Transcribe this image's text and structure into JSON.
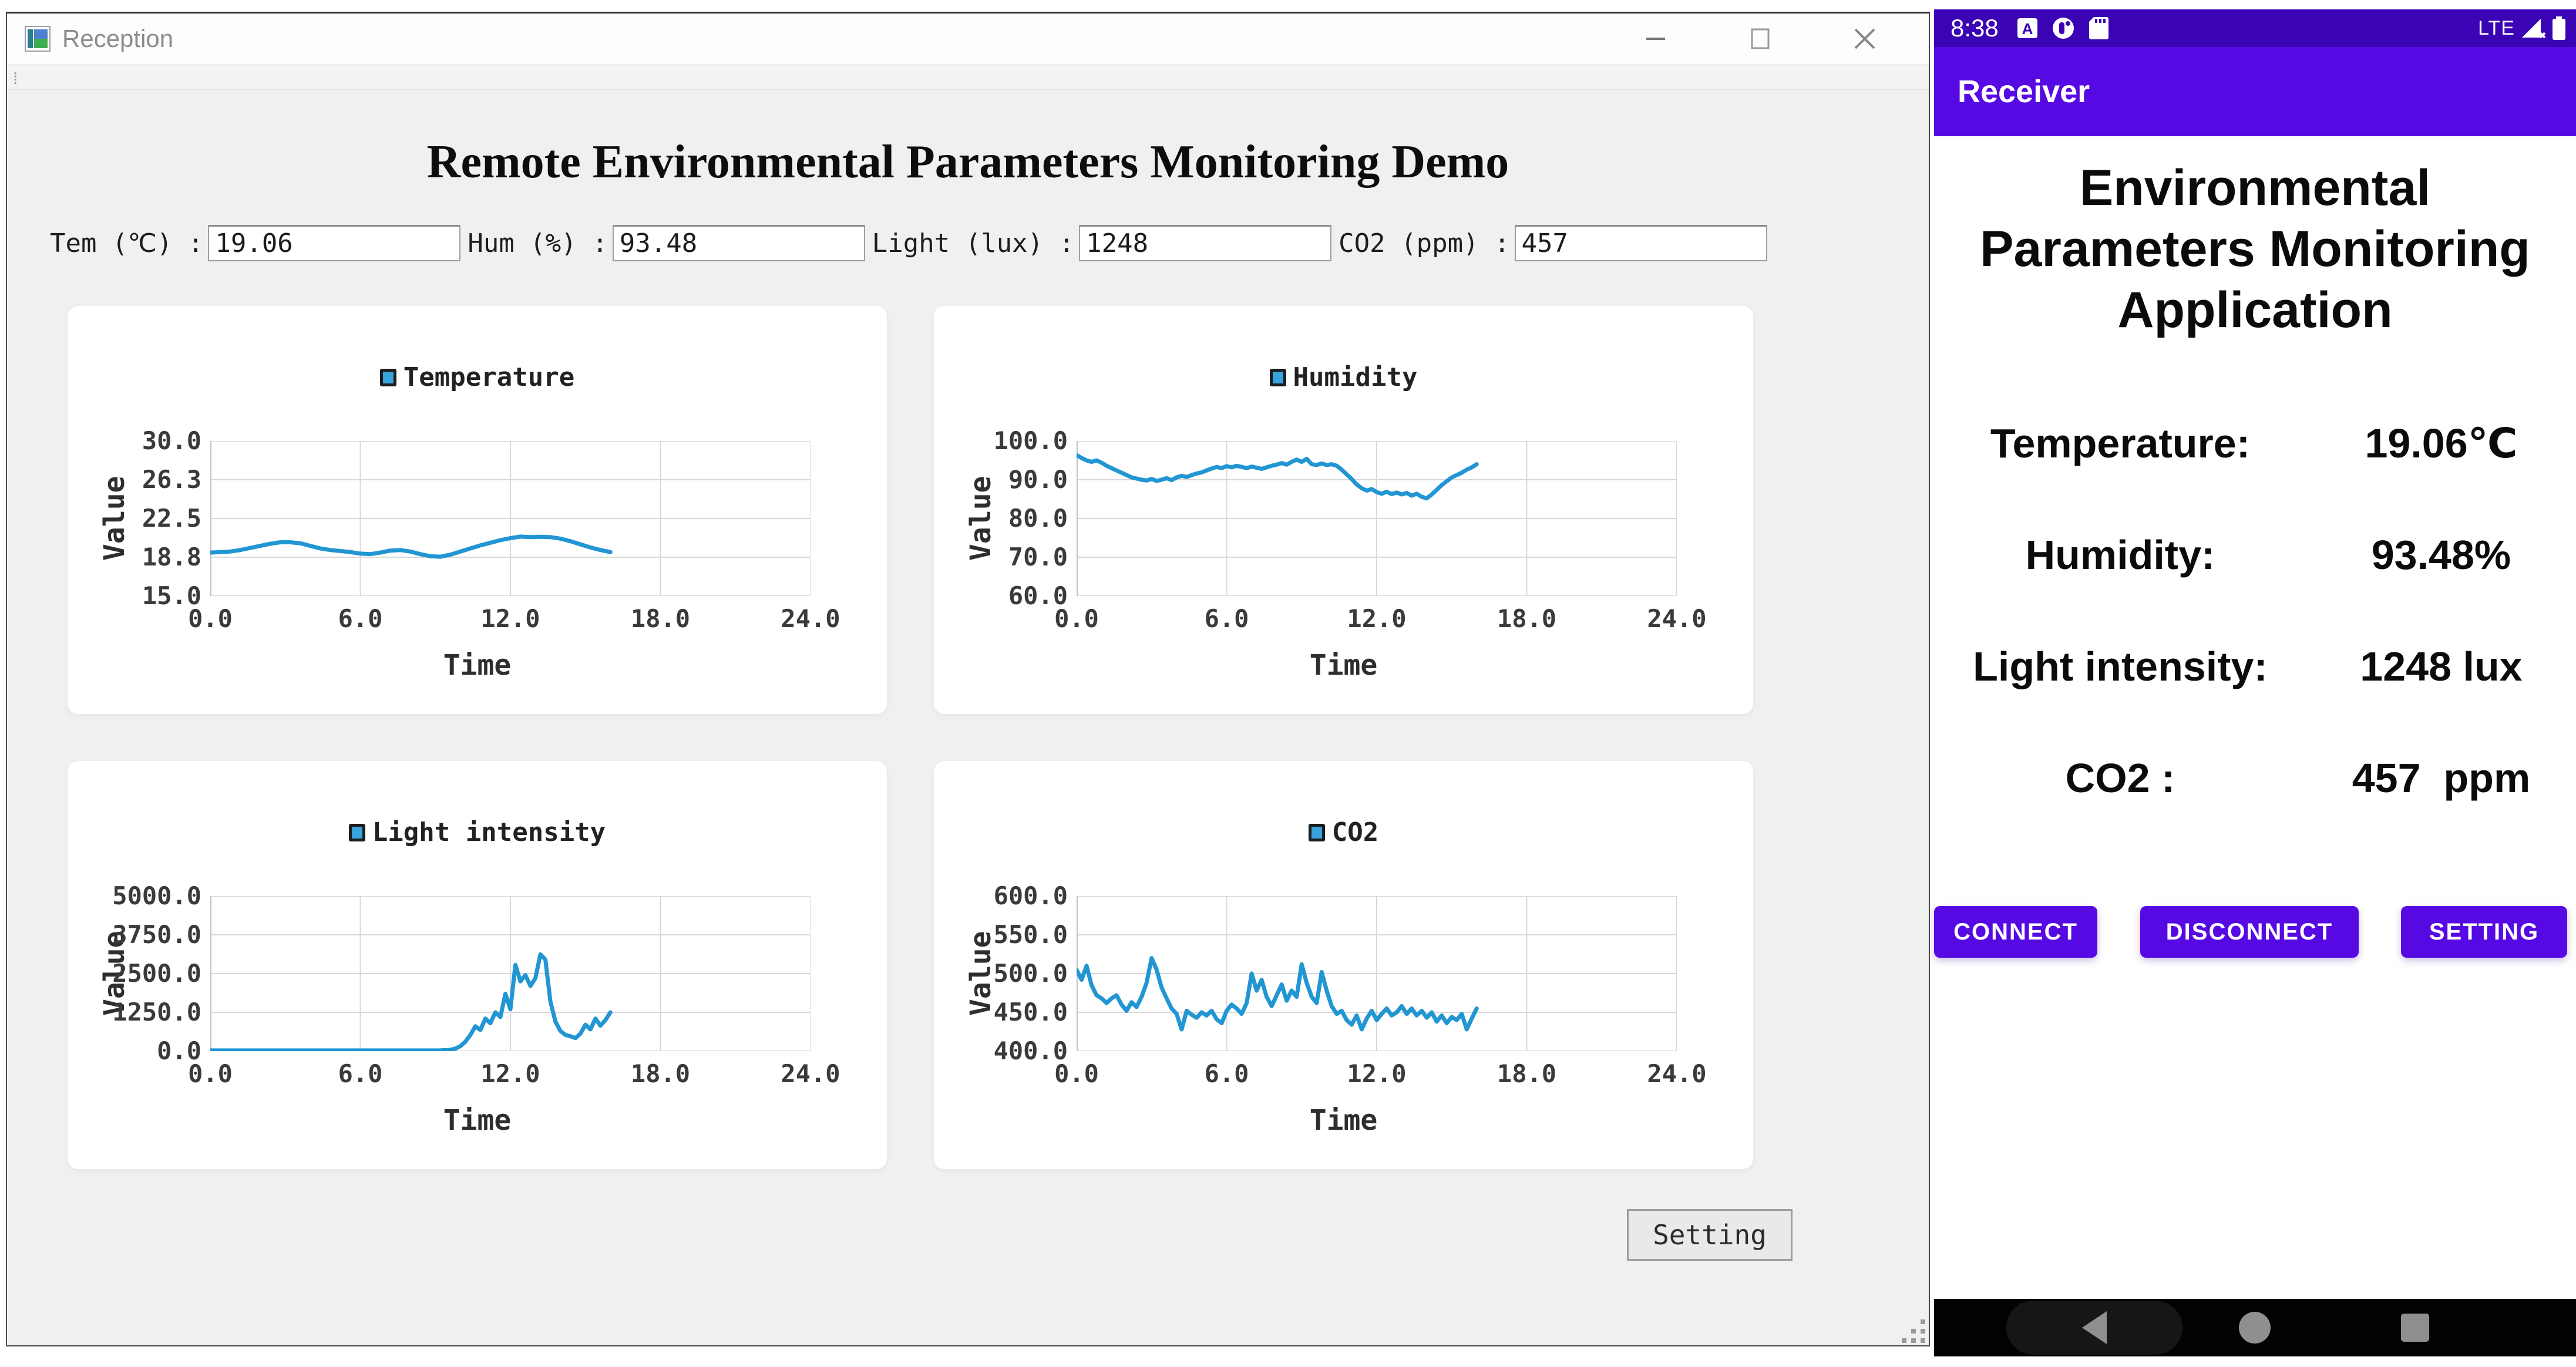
{
  "window": {
    "title": "Reception",
    "controls": {
      "minimize": "minimize-icon",
      "maximize": "maximize-icon",
      "close": "close-icon"
    }
  },
  "header": {
    "title": "Remote Environmental Parameters Monitoring Demo"
  },
  "inputs": [
    {
      "label": "Tem (℃) :",
      "value": "19.06"
    },
    {
      "label": "Hum (%) :",
      "value": "93.48"
    },
    {
      "label": "Light (lux) :",
      "value": "1248"
    },
    {
      "label": "CO2 (ppm) :",
      "value": "457"
    }
  ],
  "setting_button": "Setting",
  "colors": {
    "chart_line": "#2196d3",
    "legend_fill": "#38a3dc",
    "gridline": "#d8d8d8",
    "phone_statusbar": "#3a03b4",
    "phone_accent": "#5609e3",
    "card_bg": "#ffffff",
    "desktop_bg": "#f0f0ef"
  },
  "chart_data": [
    {
      "type": "line",
      "legend": "Temperature",
      "title": "Temperature",
      "xlabel": "Time",
      "ylabel": "Value",
      "xlim": [
        0,
        24
      ],
      "ylim": [
        15.0,
        30.0
      ],
      "xtick_labels": [
        "0.0",
        "6.0",
        "12.0",
        "18.0",
        "24.0"
      ],
      "ytick_labels": [
        "30.0",
        "26.3",
        "22.5",
        "18.8",
        "15.0"
      ],
      "grid": true,
      "legend_position": "top",
      "points": [
        [
          0,
          19.2
        ],
        [
          0.4,
          19.25
        ],
        [
          0.8,
          19.3
        ],
        [
          1.2,
          19.45
        ],
        [
          1.6,
          19.65
        ],
        [
          2,
          19.85
        ],
        [
          2.4,
          20.05
        ],
        [
          2.8,
          20.2
        ],
        [
          3.2,
          20.2
        ],
        [
          3.6,
          20.1
        ],
        [
          4,
          19.85
        ],
        [
          4.4,
          19.6
        ],
        [
          4.8,
          19.45
        ],
        [
          5.2,
          19.35
        ],
        [
          5.6,
          19.25
        ],
        [
          6,
          19.1
        ],
        [
          6.4,
          19.05
        ],
        [
          6.8,
          19.2
        ],
        [
          7.2,
          19.4
        ],
        [
          7.6,
          19.45
        ],
        [
          8,
          19.3
        ],
        [
          8.4,
          19.05
        ],
        [
          8.8,
          18.85
        ],
        [
          9.2,
          18.8
        ],
        [
          9.6,
          19.0
        ],
        [
          10,
          19.3
        ],
        [
          10.4,
          19.6
        ],
        [
          10.8,
          19.9
        ],
        [
          11.2,
          20.15
        ],
        [
          11.6,
          20.4
        ],
        [
          12,
          20.6
        ],
        [
          12.4,
          20.75
        ],
        [
          12.8,
          20.7
        ],
        [
          13.2,
          20.72
        ],
        [
          13.6,
          20.7
        ],
        [
          14,
          20.55
        ],
        [
          14.4,
          20.3
        ],
        [
          14.8,
          20.0
        ],
        [
          15.2,
          19.7
        ],
        [
          15.6,
          19.45
        ],
        [
          16,
          19.25
        ]
      ]
    },
    {
      "type": "line",
      "legend": "Humidity",
      "title": "Humidity",
      "xlabel": "Time",
      "ylabel": "Value",
      "xlim": [
        0,
        24
      ],
      "ylim": [
        60.0,
        100.0
      ],
      "xtick_labels": [
        "0.0",
        "6.0",
        "12.0",
        "18.0",
        "24.0"
      ],
      "ytick_labels": [
        "100.0",
        "90.0",
        "80.0",
        "70.0",
        "60.0"
      ],
      "grid": true,
      "legend_position": "top",
      "points": [
        [
          0,
          96.4
        ],
        [
          0.2,
          95.6
        ],
        [
          0.4,
          95.0
        ],
        [
          0.6,
          94.6
        ],
        [
          0.8,
          95.0
        ],
        [
          1,
          94.4
        ],
        [
          1.2,
          93.6
        ],
        [
          1.4,
          93.0
        ],
        [
          1.6,
          92.4
        ],
        [
          1.8,
          91.8
        ],
        [
          2,
          91.2
        ],
        [
          2.2,
          90.6
        ],
        [
          2.4,
          90.3
        ],
        [
          2.6,
          90.0
        ],
        [
          2.8,
          89.8
        ],
        [
          3,
          90.2
        ],
        [
          3.2,
          89.7
        ],
        [
          3.4,
          90.0
        ],
        [
          3.6,
          90.4
        ],
        [
          3.8,
          89.9
        ],
        [
          4,
          90.6
        ],
        [
          4.2,
          91.0
        ],
        [
          4.4,
          90.7
        ],
        [
          4.6,
          91.2
        ],
        [
          4.8,
          91.6
        ],
        [
          5,
          91.9
        ],
        [
          5.2,
          92.4
        ],
        [
          5.4,
          92.9
        ],
        [
          5.6,
          93.3
        ],
        [
          5.8,
          93.0
        ],
        [
          6,
          93.5
        ],
        [
          6.2,
          93.2
        ],
        [
          6.4,
          93.6
        ],
        [
          6.6,
          93.3
        ],
        [
          6.8,
          93.0
        ],
        [
          7,
          93.4
        ],
        [
          7.2,
          93.1
        ],
        [
          7.4,
          92.8
        ],
        [
          7.6,
          93.2
        ],
        [
          7.8,
          93.6
        ],
        [
          8,
          93.9
        ],
        [
          8.2,
          94.3
        ],
        [
          8.4,
          93.9
        ],
        [
          8.6,
          94.6
        ],
        [
          8.8,
          95.2
        ],
        [
          9,
          94.6
        ],
        [
          9.2,
          95.4
        ],
        [
          9.4,
          94.0
        ],
        [
          9.6,
          93.8
        ],
        [
          9.8,
          94.2
        ],
        [
          10,
          93.8
        ],
        [
          10.2,
          94.0
        ],
        [
          10.4,
          93.6
        ],
        [
          10.6,
          92.6
        ],
        [
          10.8,
          91.4
        ],
        [
          11,
          90.2
        ],
        [
          11.2,
          88.8
        ],
        [
          11.4,
          87.8
        ],
        [
          11.6,
          87.2
        ],
        [
          11.8,
          87.6
        ],
        [
          12,
          86.8
        ],
        [
          12.2,
          86.4
        ],
        [
          12.4,
          86.9
        ],
        [
          12.6,
          86.3
        ],
        [
          12.8,
          86.7
        ],
        [
          13,
          86.2
        ],
        [
          13.2,
          86.6
        ],
        [
          13.4,
          85.9
        ],
        [
          13.6,
          86.4
        ],
        [
          13.8,
          85.6
        ],
        [
          14,
          85.2
        ],
        [
          14.2,
          86.2
        ],
        [
          14.4,
          87.4
        ],
        [
          14.6,
          88.6
        ],
        [
          14.8,
          89.6
        ],
        [
          15,
          90.6
        ],
        [
          15.2,
          91.2
        ],
        [
          15.4,
          91.8
        ],
        [
          15.6,
          92.6
        ],
        [
          15.8,
          93.2
        ],
        [
          16,
          94.0
        ]
      ]
    },
    {
      "type": "line",
      "legend": "Light intensity",
      "title": "Light intensity",
      "xlabel": "Time",
      "ylabel": "Value",
      "xlim": [
        0,
        24
      ],
      "ylim": [
        0.0,
        5000.0
      ],
      "xtick_labels": [
        "0.0",
        "6.0",
        "12.0",
        "18.0",
        "24.0"
      ],
      "ytick_labels": [
        "5000.0",
        "3750.0",
        "2500.0",
        "1250.0",
        "0.0"
      ],
      "grid": true,
      "legend_position": "top",
      "points": [
        [
          0,
          20
        ],
        [
          1,
          20
        ],
        [
          2,
          20
        ],
        [
          3,
          20
        ],
        [
          4,
          20
        ],
        [
          5,
          20
        ],
        [
          6,
          20
        ],
        [
          7,
          20
        ],
        [
          8,
          20
        ],
        [
          8.8,
          20
        ],
        [
          9.2,
          25
        ],
        [
          9.6,
          40
        ],
        [
          9.8,
          80
        ],
        [
          10,
          160
        ],
        [
          10.2,
          300
        ],
        [
          10.4,
          520
        ],
        [
          10.6,
          800
        ],
        [
          10.8,
          680
        ],
        [
          11,
          1050
        ],
        [
          11.2,
          900
        ],
        [
          11.4,
          1250
        ],
        [
          11.6,
          1100
        ],
        [
          11.8,
          1850
        ],
        [
          12,
          1350
        ],
        [
          12.2,
          2780
        ],
        [
          12.4,
          2250
        ],
        [
          12.6,
          2450
        ],
        [
          12.8,
          2100
        ],
        [
          13,
          2350
        ],
        [
          13.2,
          3120
        ],
        [
          13.4,
          2950
        ],
        [
          13.6,
          1600
        ],
        [
          13.8,
          950
        ],
        [
          14,
          650
        ],
        [
          14.2,
          520
        ],
        [
          14.4,
          480
        ],
        [
          14.6,
          420
        ],
        [
          14.8,
          560
        ],
        [
          15,
          850
        ],
        [
          15.2,
          700
        ],
        [
          15.4,
          1050
        ],
        [
          15.6,
          820
        ],
        [
          15.8,
          1000
        ],
        [
          16,
          1250
        ]
      ]
    },
    {
      "type": "line",
      "legend": "CO2",
      "title": "CO2",
      "xlabel": "Time",
      "ylabel": "Value",
      "xlim": [
        0,
        24
      ],
      "ylim": [
        400.0,
        600.0
      ],
      "xtick_labels": [
        "0.0",
        "6.0",
        "12.0",
        "18.0",
        "24.0"
      ],
      "ytick_labels": [
        "600.0",
        "550.0",
        "500.0",
        "450.0",
        "400.0"
      ],
      "grid": true,
      "legend_position": "top",
      "points": [
        [
          0,
          505
        ],
        [
          0.2,
          492
        ],
        [
          0.4,
          510
        ],
        [
          0.6,
          485
        ],
        [
          0.8,
          472
        ],
        [
          1,
          468
        ],
        [
          1.2,
          462
        ],
        [
          1.4,
          468
        ],
        [
          1.6,
          472
        ],
        [
          1.8,
          460
        ],
        [
          2,
          452
        ],
        [
          2.2,
          463
        ],
        [
          2.4,
          457
        ],
        [
          2.6,
          470
        ],
        [
          2.8,
          488
        ],
        [
          3,
          520
        ],
        [
          3.2,
          505
        ],
        [
          3.4,
          482
        ],
        [
          3.6,
          468
        ],
        [
          3.8,
          455
        ],
        [
          4,
          448
        ],
        [
          4.2,
          428
        ],
        [
          4.4,
          452
        ],
        [
          4.6,
          447
        ],
        [
          4.8,
          443
        ],
        [
          5,
          450
        ],
        [
          5.2,
          446
        ],
        [
          5.4,
          452
        ],
        [
          5.6,
          441
        ],
        [
          5.8,
          436
        ],
        [
          6,
          452
        ],
        [
          6.2,
          460
        ],
        [
          6.4,
          455
        ],
        [
          6.6,
          448
        ],
        [
          6.8,
          462
        ],
        [
          7,
          500
        ],
        [
          7.2,
          478
        ],
        [
          7.4,
          492
        ],
        [
          7.6,
          470
        ],
        [
          7.8,
          458
        ],
        [
          8,
          472
        ],
        [
          8.2,
          486
        ],
        [
          8.4,
          465
        ],
        [
          8.6,
          478
        ],
        [
          8.8,
          470
        ],
        [
          9,
          512
        ],
        [
          9.2,
          488
        ],
        [
          9.4,
          470
        ],
        [
          9.6,
          462
        ],
        [
          9.8,
          502
        ],
        [
          10,
          478
        ],
        [
          10.2,
          458
        ],
        [
          10.4,
          448
        ],
        [
          10.6,
          452
        ],
        [
          10.8,
          440
        ],
        [
          11,
          434
        ],
        [
          11.2,
          446
        ],
        [
          11.4,
          428
        ],
        [
          11.6,
          442
        ],
        [
          11.8,
          452
        ],
        [
          12,
          440
        ],
        [
          12.2,
          448
        ],
        [
          12.4,
          455
        ],
        [
          12.6,
          446
        ],
        [
          12.8,
          450
        ],
        [
          13,
          458
        ],
        [
          13.2,
          448
        ],
        [
          13.4,
          455
        ],
        [
          13.6,
          446
        ],
        [
          13.8,
          452
        ],
        [
          14,
          443
        ],
        [
          14.2,
          450
        ],
        [
          14.4,
          438
        ],
        [
          14.6,
          446
        ],
        [
          14.8,
          436
        ],
        [
          15,
          444
        ],
        [
          15.2,
          440
        ],
        [
          15.4,
          448
        ],
        [
          15.6,
          428
        ],
        [
          15.8,
          442
        ],
        [
          16,
          455
        ]
      ]
    }
  ],
  "phone": {
    "statusbar": {
      "time": "8:38",
      "network": "LTE",
      "icons_left": [
        "letter-a-icon",
        "data-usage-icon",
        "sd-card-icon"
      ],
      "icons_right": [
        "signal-off-icon",
        "battery-icon"
      ]
    },
    "appbar": {
      "title": "Receiver"
    },
    "title_lines": [
      "Environmental",
      "Parameters Monitoring",
      "Application"
    ],
    "rows": [
      {
        "label": "Temperature:",
        "value": "19.06℃"
      },
      {
        "label": "Humidity:",
        "value": "93.48%"
      },
      {
        "label": "Light intensity:",
        "value": "1248 lux"
      },
      {
        "label": "CO2 :",
        "value": "457  ppm"
      }
    ],
    "buttons": [
      "CONNECT",
      "DISCONNECT",
      "SETTING"
    ],
    "navbar_icons": [
      "back-icon",
      "home-icon",
      "recents-icon"
    ]
  }
}
